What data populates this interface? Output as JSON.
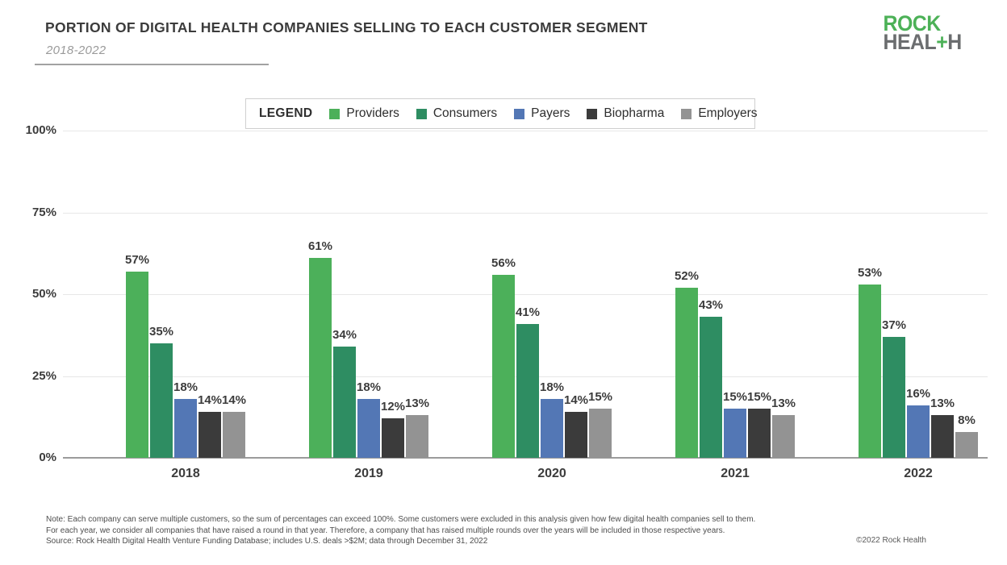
{
  "header": {
    "title": "PORTION OF DIGITAL HEALTH COMPANIES SELLING TO EACH CUSTOMER SEGMENT",
    "subtitle": "2018-2022"
  },
  "logo": {
    "line1": "ROCK",
    "line2_pre": "HEAL",
    "plus": "+",
    "line2_post": "H",
    "green": "#4cb157",
    "gray": "#6b6d6f"
  },
  "legend": {
    "label": "LEGEND",
    "items": [
      {
        "name": "Providers",
        "color": "#4cb05a"
      },
      {
        "name": "Consumers",
        "color": "#2e8d62"
      },
      {
        "name": "Payers",
        "color": "#5377b5"
      },
      {
        "name": "Biopharma",
        "color": "#3b3b3b"
      },
      {
        "name": "Employers",
        "color": "#939393"
      }
    ]
  },
  "chart_data": {
    "type": "bar",
    "title": "Portion of digital health companies selling to each customer segment",
    "categories": [
      "2018",
      "2019",
      "2020",
      "2021",
      "2022"
    ],
    "series": [
      {
        "name": "Providers",
        "color": "#4cb05a",
        "values": [
          57,
          61,
          56,
          52,
          53
        ]
      },
      {
        "name": "Consumers",
        "color": "#2e8d62",
        "values": [
          35,
          34,
          41,
          43,
          37
        ]
      },
      {
        "name": "Payers",
        "color": "#5377b5",
        "values": [
          18,
          18,
          18,
          15,
          16
        ]
      },
      {
        "name": "Biopharma",
        "color": "#3b3b3b",
        "values": [
          14,
          12,
          14,
          15,
          13
        ]
      },
      {
        "name": "Employers",
        "color": "#939393",
        "values": [
          14,
          13,
          15,
          13,
          8
        ]
      }
    ],
    "value_label_suffix": "%",
    "xlabel": "",
    "ylabel": "",
    "yticks": [
      {
        "label": "0%",
        "value": 0
      },
      {
        "label": "25%",
        "value": 25
      },
      {
        "label": "50%",
        "value": 50
      },
      {
        "label": "75%",
        "value": 75
      },
      {
        "label": "100%",
        "value": 100
      }
    ],
    "ylim": [
      0,
      100
    ],
    "grid": true,
    "legend_position": "top"
  },
  "footer": {
    "note_lines": [
      "Note: Each company can serve multiple customers, so the sum of percentages can exceed 100%. Some customers were excluded in this analysis given how few digital health companies sell to them.",
      "For each year, we consider all companies that have raised a round in that year. Therefore, a company that has raised multiple rounds over the years will be included in those respective years.",
      "Source: Rock Health Digital Health Venture Funding Database; includes U.S. deals >$2M; data through December 31, 2022"
    ],
    "copyright": "©2022 Rock Health"
  }
}
